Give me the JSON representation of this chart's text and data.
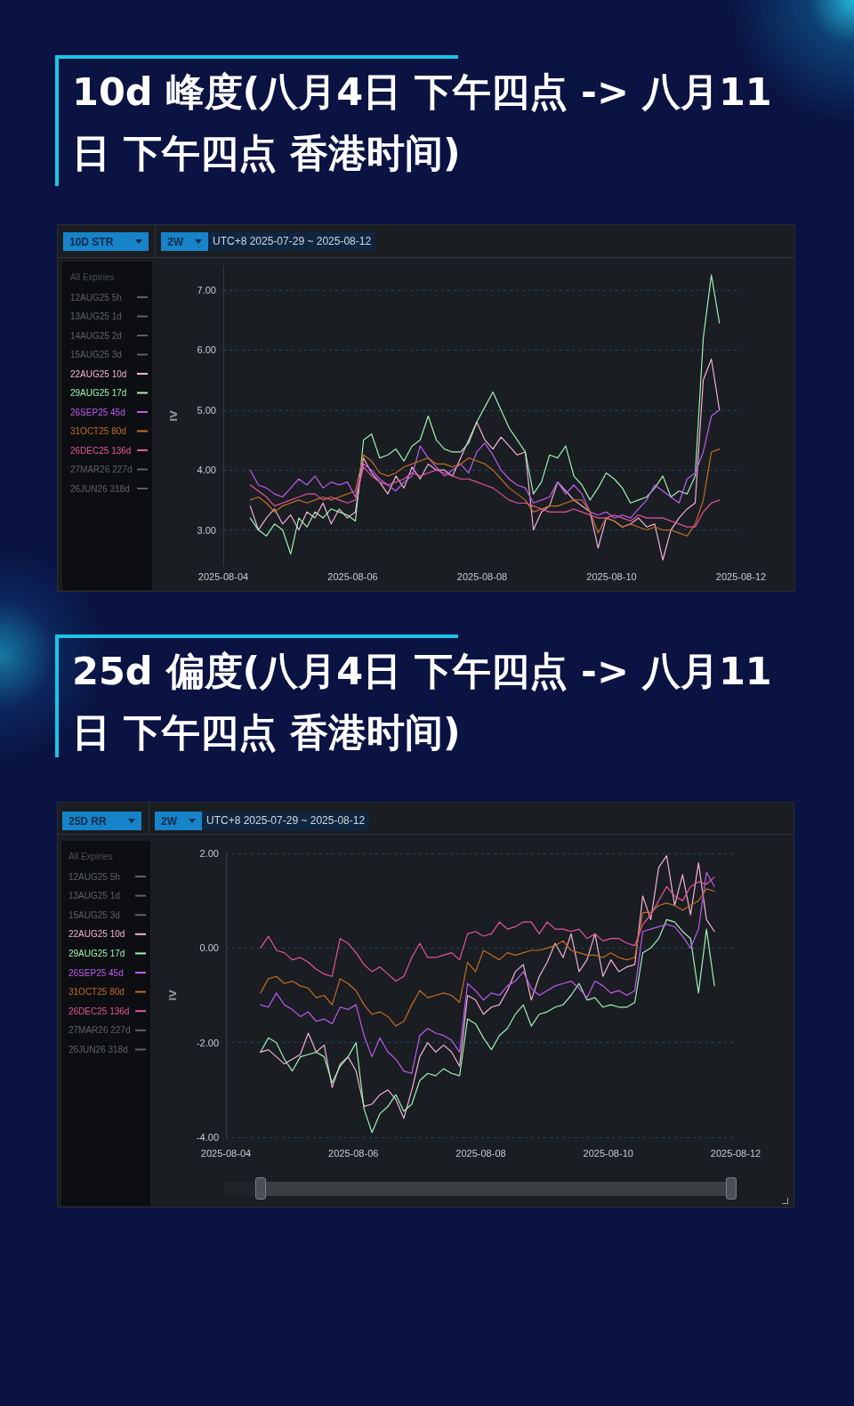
{
  "chart_data": [
    {
      "type": "line",
      "title": "10d 峰度(八月4日 下午四点 -> 八月11日 下午四点 香港时间)",
      "annotations": [
        "10D STR",
        "2W",
        "UTC+8 2025-07-29 ~ 2025-08-12"
      ],
      "ylabel": "IV",
      "legend": "left",
      "legend_title": "All Expiries",
      "marker": "none",
      "grid": "y",
      "xlim": [
        "2025-08-04",
        "2025-08-12"
      ],
      "xticks": [
        "2025-08-04",
        "2025-08-06",
        "2025-08-08",
        "2025-08-10",
        "2025-08-12"
      ],
      "ylim": [
        2.4,
        7.4
      ],
      "yticks": [
        {
          "value": 3,
          "label": "3.00"
        },
        {
          "value": 4,
          "label": "4.00"
        },
        {
          "value": 5,
          "label": "5.00"
        },
        {
          "value": 6,
          "label": "6.00"
        },
        {
          "value": 7,
          "label": "7.00"
        }
      ],
      "x": [
        "2025-08-04T10:00",
        "2025-08-04T13:00",
        "2025-08-04T16:00",
        "2025-08-04T19:00",
        "2025-08-04T22:00",
        "2025-08-05T01:00",
        "2025-08-05T04:00",
        "2025-08-05T07:00",
        "2025-08-05T10:00",
        "2025-08-05T13:00",
        "2025-08-05T16:00",
        "2025-08-05T19:00",
        "2025-08-05T22:00",
        "2025-08-06T01:00",
        "2025-08-06T04:00",
        "2025-08-06T07:00",
        "2025-08-06T10:00",
        "2025-08-06T13:00",
        "2025-08-06T16:00",
        "2025-08-06T19:00",
        "2025-08-06T22:00",
        "2025-08-07T01:00",
        "2025-08-07T04:00",
        "2025-08-07T07:00",
        "2025-08-07T10:00",
        "2025-08-07T13:00",
        "2025-08-07T16:00",
        "2025-08-07T19:00",
        "2025-08-07T22:00",
        "2025-08-08T01:00",
        "2025-08-08T04:00",
        "2025-08-08T07:00",
        "2025-08-08T10:00",
        "2025-08-08T13:00",
        "2025-08-08T16:00",
        "2025-08-08T19:00",
        "2025-08-08T22:00",
        "2025-08-09T01:00",
        "2025-08-09T04:00",
        "2025-08-09T07:00",
        "2025-08-09T10:00",
        "2025-08-09T13:00",
        "2025-08-09T16:00",
        "2025-08-09T19:00",
        "2025-08-09T22:00",
        "2025-08-10T01:00",
        "2025-08-10T04:00",
        "2025-08-10T07:00",
        "2025-08-10T10:00",
        "2025-08-10T13:00",
        "2025-08-10T16:00",
        "2025-08-10T19:00",
        "2025-08-10T22:00",
        "2025-08-11T01:00",
        "2025-08-11T04:00",
        "2025-08-11T07:00",
        "2025-08-11T10:00",
        "2025-08-11T13:00",
        "2025-08-11T16:00"
      ],
      "series": [
        {
          "name": "12AUG25 5h",
          "color": "#5e6268",
          "values": [
            null,
            null,
            null,
            null,
            null,
            null,
            null,
            null,
            null,
            null,
            null,
            null,
            null,
            null,
            null,
            null,
            null,
            null,
            null,
            null,
            null,
            null,
            null,
            null,
            null,
            null,
            null,
            null,
            null,
            null,
            null,
            null,
            null,
            null,
            null,
            null,
            null,
            null,
            null,
            null,
            null,
            null,
            null,
            null,
            null,
            null,
            null,
            null,
            null,
            null,
            null,
            null,
            null,
            null,
            null,
            null,
            null,
            null,
            null
          ]
        },
        {
          "name": "13AUG25 1d",
          "color": "#5e6268",
          "values": [
            null,
            null,
            null,
            null,
            null,
            null,
            null,
            null,
            null,
            null,
            null,
            null,
            null,
            null,
            null,
            null,
            null,
            null,
            null,
            null,
            null,
            null,
            null,
            null,
            null,
            null,
            null,
            null,
            null,
            null,
            null,
            null,
            null,
            null,
            null,
            null,
            null,
            null,
            null,
            null,
            null,
            null,
            null,
            null,
            null,
            null,
            null,
            null,
            null,
            null,
            null,
            null,
            null,
            null,
            null,
            null,
            null,
            null,
            null
          ]
        },
        {
          "name": "14AUG25 2d",
          "color": "#5e6268",
          "values": [
            null,
            null,
            null,
            null,
            null,
            null,
            null,
            null,
            null,
            null,
            null,
            null,
            null,
            null,
            null,
            null,
            null,
            null,
            null,
            null,
            null,
            null,
            null,
            null,
            null,
            null,
            null,
            null,
            null,
            null,
            null,
            null,
            null,
            null,
            null,
            null,
            null,
            null,
            null,
            null,
            null,
            null,
            null,
            null,
            null,
            null,
            null,
            null,
            null,
            null,
            null,
            null,
            null,
            null,
            null,
            null,
            null,
            null,
            null
          ]
        },
        {
          "name": "15AUG25 3d",
          "color": "#5e6268",
          "values": [
            null,
            null,
            null,
            null,
            null,
            null,
            null,
            null,
            null,
            null,
            null,
            null,
            null,
            null,
            null,
            null,
            null,
            null,
            null,
            null,
            null,
            null,
            null,
            null,
            null,
            null,
            null,
            null,
            null,
            null,
            null,
            null,
            null,
            null,
            null,
            null,
            null,
            null,
            null,
            null,
            null,
            null,
            null,
            null,
            null,
            null,
            null,
            null,
            null,
            null,
            null,
            null,
            null,
            null,
            null,
            null,
            null,
            null,
            null
          ]
        },
        {
          "name": "22AUG25 10d",
          "color": "#f4b1d4",
          "values": [
            3.4,
            3.0,
            3.2,
            3.35,
            3.1,
            3.25,
            3.0,
            3.3,
            3.2,
            3.45,
            3.1,
            3.35,
            3.2,
            3.3,
            4.2,
            3.95,
            3.8,
            3.6,
            3.9,
            3.7,
            4.05,
            3.85,
            4.1,
            4.0,
            4.0,
            3.9,
            4.2,
            4.5,
            4.8,
            4.5,
            4.35,
            4.55,
            4.4,
            4.25,
            4.3,
            3.0,
            3.3,
            3.4,
            3.8,
            3.65,
            3.5,
            3.4,
            3.3,
            2.7,
            3.2,
            3.15,
            3.05,
            3.1,
            3.2,
            3.05,
            3.1,
            2.5,
            3.0,
            3.2,
            3.35,
            3.45,
            5.5,
            5.85,
            5.0
          ]
        },
        {
          "name": "29AUG25 17d",
          "color": "#9df0b5",
          "values": [
            3.2,
            3.0,
            2.9,
            3.1,
            3.0,
            2.6,
            3.2,
            3.05,
            3.3,
            3.2,
            3.35,
            3.3,
            3.25,
            3.15,
            4.5,
            4.6,
            4.2,
            4.25,
            4.35,
            4.15,
            4.4,
            4.5,
            4.9,
            4.5,
            4.35,
            4.3,
            4.3,
            4.45,
            4.8,
            5.05,
            5.3,
            5.0,
            4.7,
            4.5,
            4.3,
            3.6,
            3.8,
            4.25,
            4.2,
            4.4,
            3.9,
            3.75,
            3.5,
            3.7,
            3.95,
            3.85,
            3.7,
            3.45,
            3.5,
            3.55,
            3.7,
            3.9,
            3.55,
            3.65,
            3.6,
            3.9,
            6.2,
            7.25,
            6.45
          ]
        },
        {
          "name": "26SEP25 45d",
          "color": "#bd5cf0",
          "values": [
            4.0,
            3.75,
            3.7,
            3.6,
            3.55,
            3.7,
            3.85,
            3.75,
            3.9,
            3.7,
            3.8,
            3.75,
            3.8,
            3.55,
            4.1,
            4.0,
            3.85,
            3.75,
            3.65,
            3.8,
            3.9,
            4.4,
            4.2,
            4.05,
            3.9,
            4.0,
            4.1,
            3.95,
            4.3,
            4.45,
            4.25,
            4.0,
            3.85,
            3.75,
            3.7,
            3.45,
            3.5,
            3.55,
            3.8,
            3.6,
            3.75,
            3.6,
            3.3,
            3.25,
            3.3,
            3.2,
            3.25,
            3.2,
            3.35,
            3.5,
            3.75,
            3.65,
            3.55,
            3.45,
            3.85,
            3.95,
            4.3,
            4.9,
            5.0
          ]
        },
        {
          "name": "31OCT25 80d",
          "color": "#c46d22",
          "values": [
            3.5,
            3.55,
            3.45,
            3.3,
            3.4,
            3.45,
            3.5,
            3.45,
            3.5,
            3.55,
            3.5,
            3.55,
            3.6,
            3.65,
            4.25,
            4.15,
            3.95,
            3.9,
            3.95,
            4.05,
            4.1,
            4.15,
            4.2,
            4.1,
            4.1,
            4.05,
            4.1,
            4.2,
            4.15,
            4.1,
            4.0,
            3.85,
            3.7,
            3.6,
            3.5,
            3.3,
            3.35,
            3.4,
            3.4,
            3.45,
            3.5,
            3.5,
            3.3,
            2.95,
            3.2,
            3.15,
            3.05,
            3.1,
            3.05,
            3.0,
            3.05,
            3.0,
            3.0,
            2.95,
            2.9,
            3.1,
            3.5,
            4.3,
            4.35
          ]
        },
        {
          "name": "26DEC25 136d",
          "color": "#e5559f",
          "values": [
            3.75,
            3.65,
            3.55,
            3.4,
            3.45,
            3.5,
            3.55,
            3.6,
            3.6,
            3.5,
            3.55,
            3.5,
            3.45,
            3.5,
            4.05,
            3.9,
            3.8,
            3.75,
            3.8,
            3.85,
            3.95,
            3.9,
            3.95,
            4.0,
            3.95,
            3.9,
            3.85,
            3.85,
            3.8,
            3.75,
            3.7,
            3.6,
            3.5,
            3.45,
            3.45,
            3.4,
            3.35,
            3.3,
            3.3,
            3.3,
            3.35,
            3.3,
            3.25,
            3.2,
            3.2,
            3.25,
            3.2,
            3.15,
            3.25,
            3.2,
            3.2,
            3.2,
            3.15,
            3.1,
            3.05,
            3.05,
            3.3,
            3.45,
            3.5
          ]
        },
        {
          "name": "27MAR26 227d",
          "color": "#5e6268",
          "values": [
            null,
            null,
            null,
            null,
            null,
            null,
            null,
            null,
            null,
            null,
            null,
            null,
            null,
            null,
            null,
            null,
            null,
            null,
            null,
            null,
            null,
            null,
            null,
            null,
            null,
            null,
            null,
            null,
            null,
            null,
            null,
            null,
            null,
            null,
            null,
            null,
            null,
            null,
            null,
            null,
            null,
            null,
            null,
            null,
            null,
            null,
            null,
            null,
            null,
            null,
            null,
            null,
            null,
            null,
            null,
            null,
            null,
            null,
            null
          ]
        },
        {
          "name": "26JUN26 318d",
          "color": "#5e6268",
          "values": [
            null,
            null,
            null,
            null,
            null,
            null,
            null,
            null,
            null,
            null,
            null,
            null,
            null,
            null,
            null,
            null,
            null,
            null,
            null,
            null,
            null,
            null,
            null,
            null,
            null,
            null,
            null,
            null,
            null,
            null,
            null,
            null,
            null,
            null,
            null,
            null,
            null,
            null,
            null,
            null,
            null,
            null,
            null,
            null,
            null,
            null,
            null,
            null,
            null,
            null,
            null,
            null,
            null,
            null,
            null,
            null,
            null,
            null,
            null
          ]
        }
      ]
    },
    {
      "type": "line",
      "title": "25d 偏度(八月4日 下午四点 -> 八月11日 下午四点 香港时间)",
      "annotations": [
        "25D RR",
        "2W",
        "UTC+8 2025-07-29 ~ 2025-08-12"
      ],
      "ylabel": "IV",
      "legend": "left",
      "legend_title": "All Expiries",
      "marker": "none",
      "grid": "y",
      "xlim": [
        "2025-08-04",
        "2025-08-12"
      ],
      "xticks": [
        "2025-08-04",
        "2025-08-06",
        "2025-08-08",
        "2025-08-10",
        "2025-08-12"
      ],
      "ylim": [
        -4,
        2
      ],
      "yticks": [
        {
          "value": -4,
          "label": "-4.00"
        },
        {
          "value": -2,
          "label": "-2.00"
        },
        {
          "value": 0,
          "label": "0.00"
        },
        {
          "value": 2,
          "label": "2.00"
        }
      ],
      "x": [
        "2025-08-04T13:00",
        "2025-08-04T16:00",
        "2025-08-04T19:00",
        "2025-08-04T22:00",
        "2025-08-05T01:00",
        "2025-08-05T04:00",
        "2025-08-05T07:00",
        "2025-08-05T10:00",
        "2025-08-05T13:00",
        "2025-08-05T16:00",
        "2025-08-05T19:00",
        "2025-08-05T22:00",
        "2025-08-06T01:00",
        "2025-08-06T04:00",
        "2025-08-06T07:00",
        "2025-08-06T10:00",
        "2025-08-06T13:00",
        "2025-08-06T16:00",
        "2025-08-06T19:00",
        "2025-08-06T22:00",
        "2025-08-07T01:00",
        "2025-08-07T04:00",
        "2025-08-07T07:00",
        "2025-08-07T10:00",
        "2025-08-07T13:00",
        "2025-08-07T16:00",
        "2025-08-07T19:00",
        "2025-08-07T22:00",
        "2025-08-08T01:00",
        "2025-08-08T04:00",
        "2025-08-08T07:00",
        "2025-08-08T10:00",
        "2025-08-08T13:00",
        "2025-08-08T16:00",
        "2025-08-08T19:00",
        "2025-08-08T22:00",
        "2025-08-09T01:00",
        "2025-08-09T04:00",
        "2025-08-09T07:00",
        "2025-08-09T10:00",
        "2025-08-09T13:00",
        "2025-08-09T16:00",
        "2025-08-09T19:00",
        "2025-08-09T22:00",
        "2025-08-10T01:00",
        "2025-08-10T04:00",
        "2025-08-10T07:00",
        "2025-08-10T10:00",
        "2025-08-10T13:00",
        "2025-08-10T16:00",
        "2025-08-10T19:00",
        "2025-08-10T22:00",
        "2025-08-11T01:00",
        "2025-08-11T04:00",
        "2025-08-11T07:00",
        "2025-08-11T10:00",
        "2025-08-11T13:00",
        "2025-08-11T16:00"
      ],
      "series": [
        {
          "name": "12AUG25 5h",
          "color": "#5e6268",
          "values": [
            null,
            null,
            null,
            null,
            null,
            null,
            null,
            null,
            null,
            null,
            null,
            null,
            null,
            null,
            null,
            null,
            null,
            null,
            null,
            null,
            null,
            null,
            null,
            null,
            null,
            null,
            null,
            null,
            null,
            null,
            null,
            null,
            null,
            null,
            null,
            null,
            null,
            null,
            null,
            null,
            null,
            null,
            null,
            null,
            null,
            null,
            null,
            null,
            null,
            null,
            null,
            null,
            null,
            null,
            null,
            null,
            null,
            null
          ]
        },
        {
          "name": "13AUG25 1d",
          "color": "#5e6268",
          "values": [
            null,
            null,
            null,
            null,
            null,
            null,
            null,
            null,
            null,
            null,
            null,
            null,
            null,
            null,
            null,
            null,
            null,
            null,
            null,
            null,
            null,
            null,
            null,
            null,
            null,
            null,
            null,
            null,
            null,
            null,
            null,
            null,
            null,
            null,
            null,
            null,
            null,
            null,
            null,
            null,
            null,
            null,
            null,
            null,
            null,
            null,
            null,
            null,
            null,
            null,
            null,
            null,
            null,
            null,
            null,
            null,
            null,
            null
          ]
        },
        {
          "name": "15AUG25 3d",
          "color": "#5e6268",
          "values": [
            null,
            null,
            null,
            null,
            null,
            null,
            null,
            null,
            null,
            null,
            null,
            null,
            null,
            null,
            null,
            null,
            null,
            null,
            null,
            null,
            null,
            null,
            null,
            null,
            null,
            null,
            null,
            null,
            null,
            null,
            null,
            null,
            null,
            null,
            null,
            null,
            null,
            null,
            null,
            null,
            null,
            null,
            null,
            null,
            null,
            null,
            null,
            null,
            null,
            null,
            null,
            null,
            null,
            null,
            null,
            null,
            null,
            null
          ]
        },
        {
          "name": "22AUG25 10d",
          "color": "#f4b1d4",
          "values": [
            -2.2,
            -2.15,
            -2.3,
            -2.45,
            -2.35,
            -2.25,
            -1.8,
            -2.2,
            -2.05,
            -2.95,
            -2.45,
            -2.3,
            -2.6,
            -3.35,
            -3.3,
            -3.1,
            -3.0,
            -3.2,
            -3.6,
            -3.0,
            -2.3,
            -2.0,
            -2.2,
            -2.05,
            -2.2,
            -2.5,
            -1.0,
            -1.1,
            -1.4,
            -1.25,
            -1.2,
            -0.9,
            -0.5,
            -0.35,
            -1.1,
            -0.6,
            -0.3,
            0.1,
            -0.2,
            0.3,
            -0.5,
            -0.25,
            0.3,
            -0.6,
            -0.25,
            -0.5,
            -0.4,
            -0.35,
            1.1,
            0.6,
            1.7,
            1.95,
            0.9,
            1.55,
            0.7,
            1.8,
            0.6,
            0.35
          ]
        },
        {
          "name": "29AUG25 17d",
          "color": "#9df0b5",
          "values": [
            -2.2,
            -1.9,
            -2.0,
            -2.35,
            -2.6,
            -2.3,
            -2.25,
            -2.2,
            -2.3,
            -2.85,
            -2.5,
            -2.3,
            -2.0,
            -3.4,
            -3.9,
            -3.5,
            -3.35,
            -3.1,
            -3.45,
            -3.3,
            -2.8,
            -2.65,
            -2.7,
            -2.55,
            -2.65,
            -2.7,
            -1.5,
            -1.6,
            -1.9,
            -2.15,
            -1.85,
            -1.7,
            -1.4,
            -1.2,
            -1.65,
            -1.4,
            -1.35,
            -1.25,
            -1.2,
            -1.0,
            -0.75,
            -1.1,
            -1.05,
            -1.25,
            -1.2,
            -1.25,
            -1.25,
            -1.15,
            -0.1,
            0.0,
            0.2,
            0.6,
            0.55,
            0.35,
            0.2,
            -0.95,
            0.4,
            -0.8
          ]
        },
        {
          "name": "26SEP25 45d",
          "color": "#bd5cf0",
          "values": [
            -1.2,
            -1.25,
            -0.95,
            -1.2,
            -1.3,
            -1.45,
            -1.35,
            -1.55,
            -1.5,
            -1.6,
            -1.25,
            -1.3,
            -1.2,
            -1.85,
            -2.3,
            -1.9,
            -2.2,
            -2.35,
            -2.6,
            -2.65,
            -1.85,
            -1.7,
            -1.8,
            -1.85,
            -1.95,
            -2.2,
            -0.75,
            -0.9,
            -1.1,
            -0.95,
            -1.0,
            -0.8,
            -0.7,
            -0.5,
            -0.85,
            -1.0,
            -0.9,
            -0.8,
            -0.75,
            -0.7,
            -0.85,
            -1.05,
            -0.7,
            -0.8,
            -0.95,
            -0.9,
            -1.0,
            -0.9,
            0.35,
            0.4,
            0.45,
            0.5,
            0.45,
            0.25,
            0.0,
            0.4,
            1.6,
            1.3
          ]
        },
        {
          "name": "31OCT25 80d",
          "color": "#c46d22",
          "values": [
            -0.95,
            -0.65,
            -0.6,
            -0.75,
            -0.7,
            -0.8,
            -0.85,
            -1.05,
            -1.0,
            -1.2,
            -0.65,
            -0.75,
            -0.9,
            -1.2,
            -1.4,
            -1.35,
            -1.45,
            -1.65,
            -1.55,
            -1.2,
            -0.9,
            -1.05,
            -1.0,
            -0.95,
            -1.0,
            -1.15,
            -0.3,
            -0.5,
            -0.05,
            -0.15,
            -0.25,
            -0.1,
            -0.15,
            -0.1,
            -0.05,
            -0.05,
            0.0,
            0.05,
            0.15,
            -0.05,
            -0.1,
            -0.15,
            -0.15,
            -0.2,
            -0.1,
            -0.2,
            -0.25,
            -0.2,
            0.75,
            0.75,
            0.9,
            0.95,
            0.9,
            0.8,
            0.9,
            1.0,
            1.25,
            1.2
          ]
        },
        {
          "name": "26DEC25 136d",
          "color": "#e5559f",
          "values": [
            0.0,
            0.25,
            -0.05,
            -0.1,
            -0.25,
            -0.2,
            -0.3,
            -0.45,
            -0.55,
            -0.6,
            0.2,
            0.1,
            -0.1,
            -0.35,
            -0.5,
            -0.4,
            -0.55,
            -0.7,
            -0.6,
            -0.2,
            0.1,
            -0.2,
            -0.2,
            -0.15,
            -0.1,
            -0.25,
            0.3,
            0.35,
            0.25,
            0.3,
            0.55,
            0.4,
            0.45,
            0.55,
            0.55,
            0.3,
            0.55,
            0.4,
            0.4,
            0.35,
            0.4,
            0.2,
            0.3,
            0.15,
            0.2,
            0.2,
            0.1,
            0.05,
            0.5,
            0.7,
            1.0,
            1.3,
            1.1,
            1.0,
            1.3,
            1.4,
            1.35,
            1.5
          ]
        },
        {
          "name": "27MAR26 227d",
          "color": "#5e6268",
          "values": [
            null,
            null,
            null,
            null,
            null,
            null,
            null,
            null,
            null,
            null,
            null,
            null,
            null,
            null,
            null,
            null,
            null,
            null,
            null,
            null,
            null,
            null,
            null,
            null,
            null,
            null,
            null,
            null,
            null,
            null,
            null,
            null,
            null,
            null,
            null,
            null,
            null,
            null,
            null,
            null,
            null,
            null,
            null,
            null,
            null,
            null,
            null,
            null,
            null,
            null,
            null,
            null,
            null,
            null,
            null,
            null,
            null,
            null
          ]
        },
        {
          "name": "26JUN26 318d",
          "color": "#5e6268",
          "values": [
            null,
            null,
            null,
            null,
            null,
            null,
            null,
            null,
            null,
            null,
            null,
            null,
            null,
            null,
            null,
            null,
            null,
            null,
            null,
            null,
            null,
            null,
            null,
            null,
            null,
            null,
            null,
            null,
            null,
            null,
            null,
            null,
            null,
            null,
            null,
            null,
            null,
            null,
            null,
            null,
            null,
            null,
            null,
            null,
            null,
            null,
            null,
            null,
            null,
            null,
            null,
            null,
            null,
            null,
            null,
            null,
            null,
            null
          ]
        }
      ]
    }
  ]
}
